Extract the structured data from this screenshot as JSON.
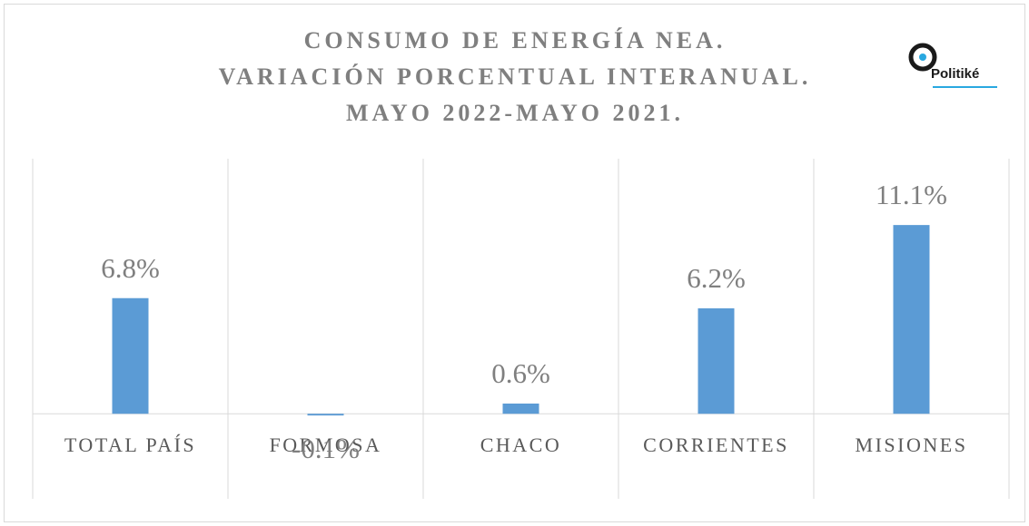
{
  "chart_data": {
    "type": "bar",
    "title": [
      "CONSUMO DE ENERGÍA NEA.",
      "VARIACIÓN PORCENTUAL INTERANUAL.",
      "MAYO 2022-MAYO 2021."
    ],
    "logo": "Politiké",
    "categories": [
      "TOTAL PAÍS",
      "FORMOSA",
      "CHACO",
      "CORRIENTES",
      "MISIONES"
    ],
    "values": [
      6.8,
      -0.1,
      0.6,
      6.2,
      11.1
    ],
    "value_labels": [
      "6.8%",
      "-0.1%",
      "0.6%",
      "6.2%",
      "11.1%"
    ],
    "color": "#5b9bd5",
    "ylim": [
      -5,
      15
    ]
  }
}
